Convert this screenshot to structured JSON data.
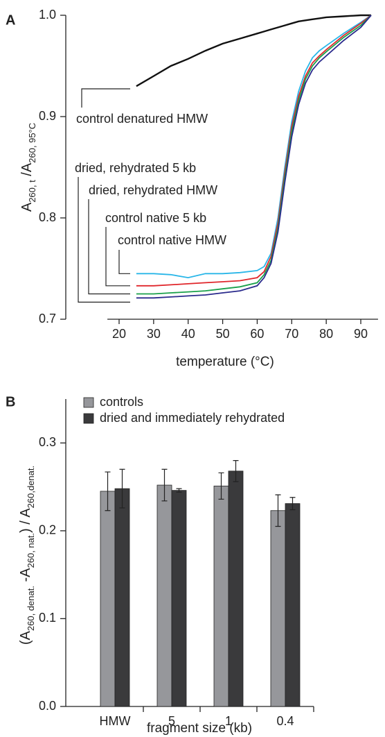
{
  "chart_data": [
    {
      "type": "line",
      "panel": "A",
      "ylabel": [
        "A",
        "260, t",
        " /A",
        "260, 95°C"
      ],
      "xlabel": "temperature (°C)",
      "x": [
        25,
        30,
        35,
        40,
        45,
        50,
        55,
        60,
        62,
        64,
        66,
        68,
        70,
        72,
        74,
        76,
        78,
        80,
        85,
        90,
        93
      ],
      "series": [
        {
          "name": "control denatured HMW",
          "color": "#111111",
          "values": [
            0.93,
            0.94,
            0.95,
            0.957,
            0.965,
            0.972,
            0.977,
            0.982,
            0.984,
            0.986,
            0.988,
            0.99,
            0.992,
            0.994,
            0.995,
            0.996,
            0.997,
            0.998,
            0.999,
            1.0,
            1.0
          ]
        },
        {
          "name": "control native HMW",
          "color": "#29b6e8",
          "values": [
            0.745,
            0.745,
            0.744,
            0.741,
            0.745,
            0.745,
            0.746,
            0.748,
            0.752,
            0.765,
            0.8,
            0.85,
            0.895,
            0.925,
            0.945,
            0.958,
            0.965,
            0.97,
            0.982,
            0.993,
            1.0
          ]
        },
        {
          "name": "control native 5 kb",
          "color": "#e0262b",
          "values": [
            0.733,
            0.733,
            0.734,
            0.735,
            0.736,
            0.737,
            0.738,
            0.741,
            0.747,
            0.762,
            0.795,
            0.845,
            0.89,
            0.92,
            0.94,
            0.953,
            0.96,
            0.966,
            0.98,
            0.992,
            1.0
          ]
        },
        {
          "name": "dried, rehydrated HMW",
          "color": "#1aa04a",
          "values": [
            0.725,
            0.725,
            0.726,
            0.727,
            0.728,
            0.73,
            0.732,
            0.736,
            0.744,
            0.758,
            0.79,
            0.84,
            0.885,
            0.916,
            0.937,
            0.95,
            0.958,
            0.964,
            0.978,
            0.99,
            1.0
          ]
        },
        {
          "name": "dried, rehydrated 5 kb",
          "color": "#2a2a8c",
          "values": [
            0.721,
            0.721,
            0.722,
            0.723,
            0.724,
            0.726,
            0.728,
            0.733,
            0.741,
            0.755,
            0.786,
            0.835,
            0.88,
            0.912,
            0.933,
            0.946,
            0.954,
            0.96,
            0.975,
            0.988,
            1.0
          ]
        }
      ],
      "xlim": [
        15,
        95
      ],
      "xticks": [
        20,
        30,
        40,
        50,
        60,
        70,
        80,
        90
      ],
      "ylim": [
        0.7,
        1.0
      ],
      "yticks": [
        0.7,
        0.8,
        0.9,
        {
          "value": 1,
          "label": "1.0"
        }
      ]
    },
    {
      "type": "bar",
      "panel": "B",
      "ylabel": [
        "(A",
        "260, denat.",
        " -A",
        "260, nat.",
        ") / A",
        "260,denat."
      ],
      "xlabel": "fragment size (kb)",
      "categories": [
        "HMW",
        "5",
        "1",
        "0.4"
      ],
      "series": [
        {
          "name": "controls",
          "color": "#96979b",
          "values": [
            0.245,
            0.252,
            0.251,
            0.223
          ],
          "errors": [
            0.022,
            0.018,
            0.015,
            0.018
          ]
        },
        {
          "name": "dried and immediately rehydrated",
          "color": "#3a3a3c",
          "values": [
            0.248,
            0.246,
            0.268,
            0.231
          ],
          "errors": [
            0.022,
            0.002,
            0.012,
            0.007
          ]
        }
      ],
      "ylim": [
        0,
        0.35
      ],
      "yticks": [
        {
          "value": 0,
          "label": "0.0"
        },
        0.1,
        0.2,
        0.3
      ],
      "legend": "upper left"
    }
  ]
}
